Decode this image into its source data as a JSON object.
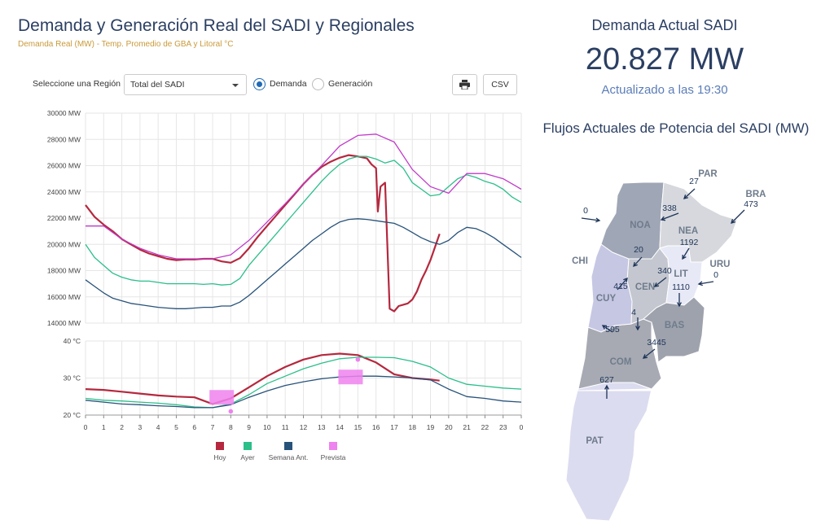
{
  "header": {
    "title": "Demanda y Generación Real del SADI y Regionales",
    "subtitle": "Demanda Real (MW) - Temp. Promedio de GBA y Litoral °C"
  },
  "controls": {
    "region_label": "Seleccione una Región",
    "region_value": "Total del SADI",
    "radio_demand": "Demanda",
    "radio_generation": "Generación",
    "csv_label": "CSV",
    "print_icon": "print-icon"
  },
  "summary": {
    "title": "Demanda Actual SADI",
    "value": "20.827 MW",
    "updated": "Actualizado a las 19:30"
  },
  "map": {
    "title": "Flujos Actuales de Potencia del SADI (MW)",
    "regions": [
      {
        "key": "noa",
        "label": "NOA",
        "color": "#9fa6b5"
      },
      {
        "key": "nea",
        "label": "NEA",
        "color": "#d6d8dd"
      },
      {
        "key": "cen",
        "label": "CEN",
        "color": "#c4c7cf"
      },
      {
        "key": "lit",
        "label": "LIT",
        "color": "#e8e9f6"
      },
      {
        "key": "cuy",
        "label": "CUY",
        "color": "#c6c7e3"
      },
      {
        "key": "bas",
        "label": "BAS",
        "color": "#9ea2ad"
      },
      {
        "key": "com",
        "label": "COM",
        "color": "#a7aab3"
      },
      {
        "key": "pat",
        "label": "PAT",
        "color": "#dcdcf0"
      }
    ],
    "countries": [
      {
        "key": "par",
        "label": "PAR"
      },
      {
        "key": "bra",
        "label": "BRA"
      },
      {
        "key": "chi",
        "label": "CHI"
      },
      {
        "key": "uru",
        "label": "URU"
      }
    ],
    "flows": [
      {
        "key": "chi-noa",
        "value": "0"
      },
      {
        "key": "par",
        "value": "27"
      },
      {
        "key": "noa-nea",
        "value": "338"
      },
      {
        "key": "bra",
        "value": "473"
      },
      {
        "key": "nea-lit",
        "value": "1192"
      },
      {
        "key": "noa-cen",
        "value": "20"
      },
      {
        "key": "cen-lit",
        "value": "340"
      },
      {
        "key": "uru",
        "value": "0"
      },
      {
        "key": "cuy-cen",
        "value": "415"
      },
      {
        "key": "lit-bas",
        "value": "1110"
      },
      {
        "key": "cen-com",
        "value": "4"
      },
      {
        "key": "cuy-com",
        "value": "595"
      },
      {
        "key": "com-bas",
        "value": "3445"
      },
      {
        "key": "pat-com",
        "value": "627"
      }
    ]
  },
  "chart_data": [
    {
      "type": "line",
      "title": "",
      "ylabel": "",
      "y_unit": "MW",
      "ylim": [
        14000,
        30000
      ],
      "yticks": [
        14000,
        16000,
        18000,
        20000,
        22000,
        24000,
        26000,
        28000,
        30000
      ],
      "grid": true,
      "series": [
        {
          "name": "Hoy",
          "color": "#b5283e",
          "x": [
            0,
            0.5,
            1,
            1.5,
            2,
            2.5,
            3,
            3.5,
            4,
            4.5,
            5,
            5.5,
            6,
            6.5,
            7,
            7.5,
            8,
            8.5,
            9,
            9.5,
            10,
            10.5,
            11,
            11.5,
            12,
            12.5,
            13,
            13.5,
            14,
            14.5,
            15,
            15.5,
            15.75,
            16,
            16.1,
            16.25,
            16.5,
            16.75,
            17,
            17.25,
            17.5,
            17.75,
            18,
            18.25,
            18.5,
            18.75,
            19,
            19.25,
            19.5
          ],
          "values": [
            23000,
            22100,
            21500,
            21000,
            20400,
            20000,
            19600,
            19300,
            19100,
            18900,
            18800,
            18850,
            18850,
            18900,
            18900,
            18700,
            18600,
            18950,
            19700,
            20600,
            21400,
            22200,
            23000,
            23800,
            24600,
            25300,
            25900,
            26300,
            26600,
            26800,
            26700,
            26550,
            26100,
            25800,
            22500,
            24400,
            24700,
            15100,
            14900,
            15300,
            15400,
            15500,
            15800,
            16400,
            17300,
            18000,
            18800,
            19800,
            20800
          ]
        },
        {
          "name": "Ayer",
          "color": "#2bbf8a",
          "x": [
            0,
            0.5,
            1,
            1.5,
            2,
            2.5,
            3,
            3.5,
            4,
            4.5,
            5,
            5.5,
            6,
            6.5,
            7,
            7.5,
            8,
            8.5,
            9,
            9.5,
            10,
            10.5,
            11,
            11.5,
            12,
            12.5,
            13,
            13.5,
            14,
            14.5,
            15,
            15.5,
            16,
            16.5,
            17,
            17.5,
            18,
            18.5,
            19,
            19.5,
            20,
            20.5,
            21,
            21.5,
            22,
            22.5,
            23,
            23.5,
            24
          ],
          "values": [
            20000,
            19000,
            18400,
            17800,
            17500,
            17300,
            17200,
            17200,
            17100,
            17000,
            17000,
            17000,
            17000,
            16950,
            17000,
            16900,
            16950,
            17400,
            18400,
            19200,
            20000,
            20800,
            21600,
            22400,
            23200,
            24000,
            24800,
            25500,
            26100,
            26500,
            26700,
            26700,
            26500,
            26200,
            26400,
            25800,
            24700,
            24200,
            23700,
            23800,
            24400,
            25000,
            25300,
            25100,
            24800,
            24600,
            24200,
            23600,
            23200
          ]
        },
        {
          "name": "Semana Ant.",
          "color": "#27527a",
          "x": [
            0,
            0.5,
            1,
            1.5,
            2,
            2.5,
            3,
            3.5,
            4,
            4.5,
            5,
            5.5,
            6,
            6.5,
            7,
            7.5,
            8,
            8.5,
            9,
            9.5,
            10,
            10.5,
            11,
            11.5,
            12,
            12.5,
            13,
            13.5,
            14,
            14.5,
            15,
            15.5,
            16,
            16.5,
            17,
            17.5,
            18,
            18.5,
            19,
            19.5,
            20,
            20.5,
            21,
            21.5,
            22,
            22.5,
            23,
            23.5,
            24
          ],
          "values": [
            17300,
            16800,
            16300,
            15900,
            15700,
            15500,
            15400,
            15300,
            15200,
            15150,
            15100,
            15100,
            15150,
            15200,
            15200,
            15300,
            15300,
            15600,
            16100,
            16700,
            17300,
            17900,
            18500,
            19100,
            19700,
            20300,
            20800,
            21300,
            21700,
            21900,
            21950,
            21900,
            21800,
            21700,
            21600,
            21300,
            20900,
            20500,
            20200,
            20000,
            20300,
            20900,
            21300,
            21200,
            20900,
            20500,
            20000,
            19500,
            19000
          ]
        },
        {
          "name": "Prevista",
          "color": "#c03ac9",
          "x": [
            0,
            1,
            2,
            3,
            4,
            5,
            6,
            7,
            8,
            9,
            10,
            11,
            12,
            13,
            14,
            15,
            16,
            17,
            18,
            19,
            20,
            21,
            22,
            23,
            24
          ],
          "values": [
            21400,
            21400,
            20400,
            19700,
            19200,
            18900,
            18900,
            18900,
            19200,
            20300,
            21700,
            23100,
            24600,
            26000,
            27500,
            28300,
            28400,
            27800,
            25700,
            24400,
            23900,
            25400,
            25400,
            25000,
            24200
          ]
        }
      ]
    },
    {
      "type": "line",
      "title": "",
      "ylabel": "",
      "y_unit": "°C",
      "ylim": [
        20,
        40
      ],
      "yticks": [
        20,
        30,
        40
      ],
      "xlim": [
        0,
        24
      ],
      "xtick_labels": [
        "0",
        "1",
        "2",
        "3",
        "4",
        "5",
        "6",
        "7",
        "8",
        "9",
        "10",
        "11",
        "12",
        "13",
        "14",
        "15",
        "16",
        "17",
        "18",
        "19",
        "20",
        "21",
        "22",
        "23",
        "0"
      ],
      "grid": true,
      "legend": "bottom",
      "legend_labels": [
        "Hoy",
        "Ayer",
        "Semana Ant.",
        "Prevista"
      ],
      "series": [
        {
          "name": "Hoy",
          "color": "#b5283e",
          "x": [
            0,
            1,
            2,
            3,
            4,
            5,
            6,
            7,
            8,
            9,
            10,
            11,
            12,
            13,
            14,
            15,
            16,
            17,
            18,
            19,
            19.5
          ],
          "values": [
            27,
            26.8,
            26.3,
            25.8,
            25.3,
            25,
            24.8,
            23,
            24.5,
            27.5,
            30.5,
            33,
            35,
            36.2,
            36.6,
            36.2,
            34.2,
            31,
            30,
            29.6,
            29.3
          ]
        },
        {
          "name": "Ayer",
          "color": "#2bbf8a",
          "x": [
            0,
            1,
            2,
            3,
            4,
            5,
            6,
            7,
            8,
            9,
            10,
            11,
            12,
            13,
            14,
            15,
            16,
            17,
            18,
            19,
            20,
            21,
            22,
            23,
            24
          ],
          "values": [
            24.5,
            24,
            23.8,
            23.5,
            23.2,
            22.8,
            22.2,
            22,
            23,
            25.5,
            28.5,
            30.5,
            32.5,
            34,
            35.2,
            35.6,
            35.6,
            35.5,
            34.5,
            33,
            30,
            28.3,
            27.8,
            27.3,
            27
          ]
        },
        {
          "name": "Semana Ant.",
          "color": "#27527a",
          "x": [
            0,
            1,
            2,
            3,
            4,
            5,
            6,
            7,
            8,
            9,
            10,
            11,
            12,
            13,
            14,
            15,
            16,
            17,
            18,
            19,
            20,
            21,
            22,
            23,
            24
          ],
          "values": [
            24,
            23.5,
            23,
            22.8,
            22.5,
            22.3,
            22,
            22,
            22.8,
            24.8,
            26.5,
            28,
            29,
            29.8,
            30.3,
            30.5,
            30.5,
            30.3,
            30,
            29.5,
            27,
            25,
            24.5,
            23.8,
            23.5
          ]
        },
        {
          "name": "Prevista",
          "color": "#ee82ee",
          "type": "scatter",
          "x": [
            8,
            15
          ],
          "values": [
            21,
            35
          ]
        }
      ]
    }
  ]
}
